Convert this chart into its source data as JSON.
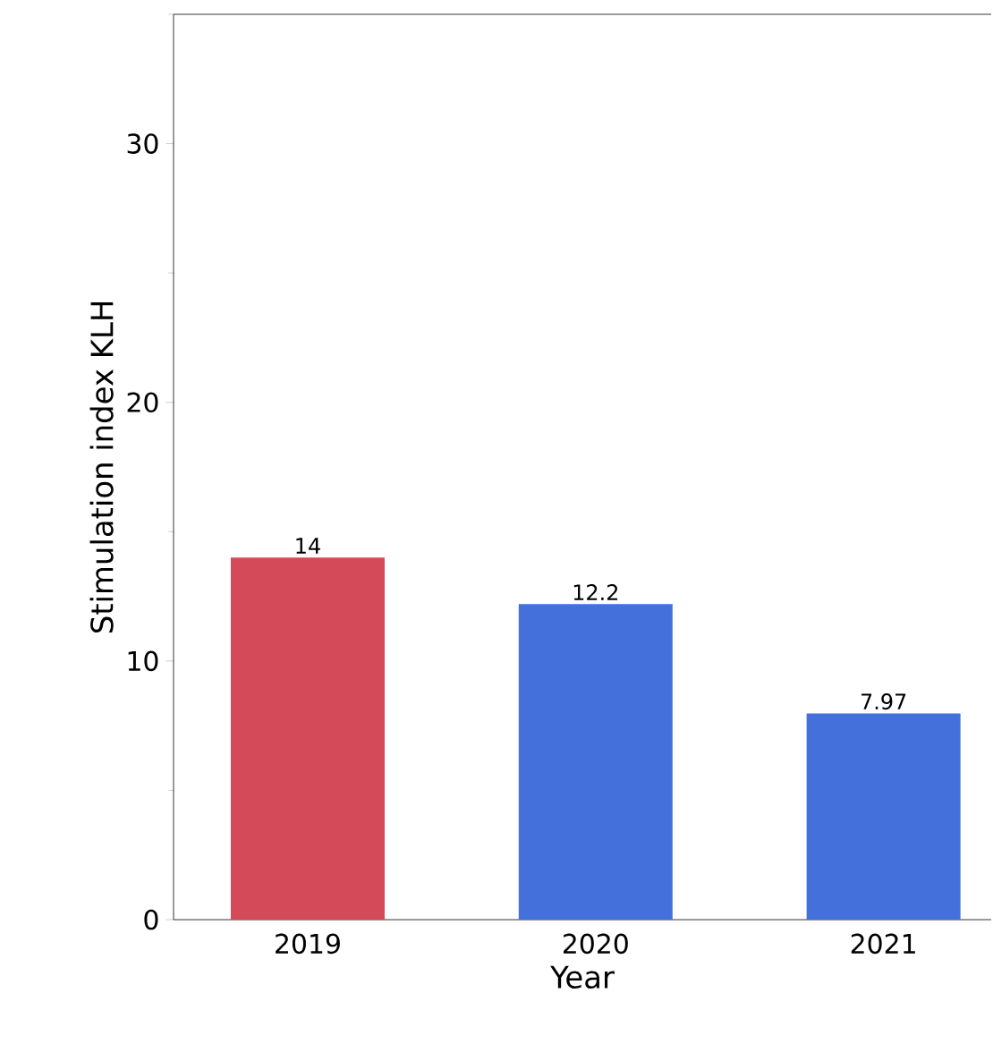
{
  "chart_data": {
    "type": "bar",
    "xlabel": "Year",
    "ylabel": "Stimulation index KLH",
    "categories": [
      "2019",
      "2020",
      "2021"
    ],
    "values": [
      14,
      12.2,
      7.97
    ],
    "colors": [
      "#d44a58",
      "#4470dc",
      "#4470dc"
    ],
    "ylim": [
      0,
      35
    ],
    "yticks": [
      {
        "value": 0,
        "label": "0"
      },
      {
        "value": 5,
        "label": null
      },
      {
        "value": 10,
        "label": "10"
      },
      {
        "value": 15,
        "label": null
      },
      {
        "value": 20,
        "label": "20"
      },
      {
        "value": 25,
        "label": null
      },
      {
        "value": 30,
        "label": "30"
      },
      {
        "value": 35,
        "label": null
      }
    ],
    "data_labels": true
  }
}
